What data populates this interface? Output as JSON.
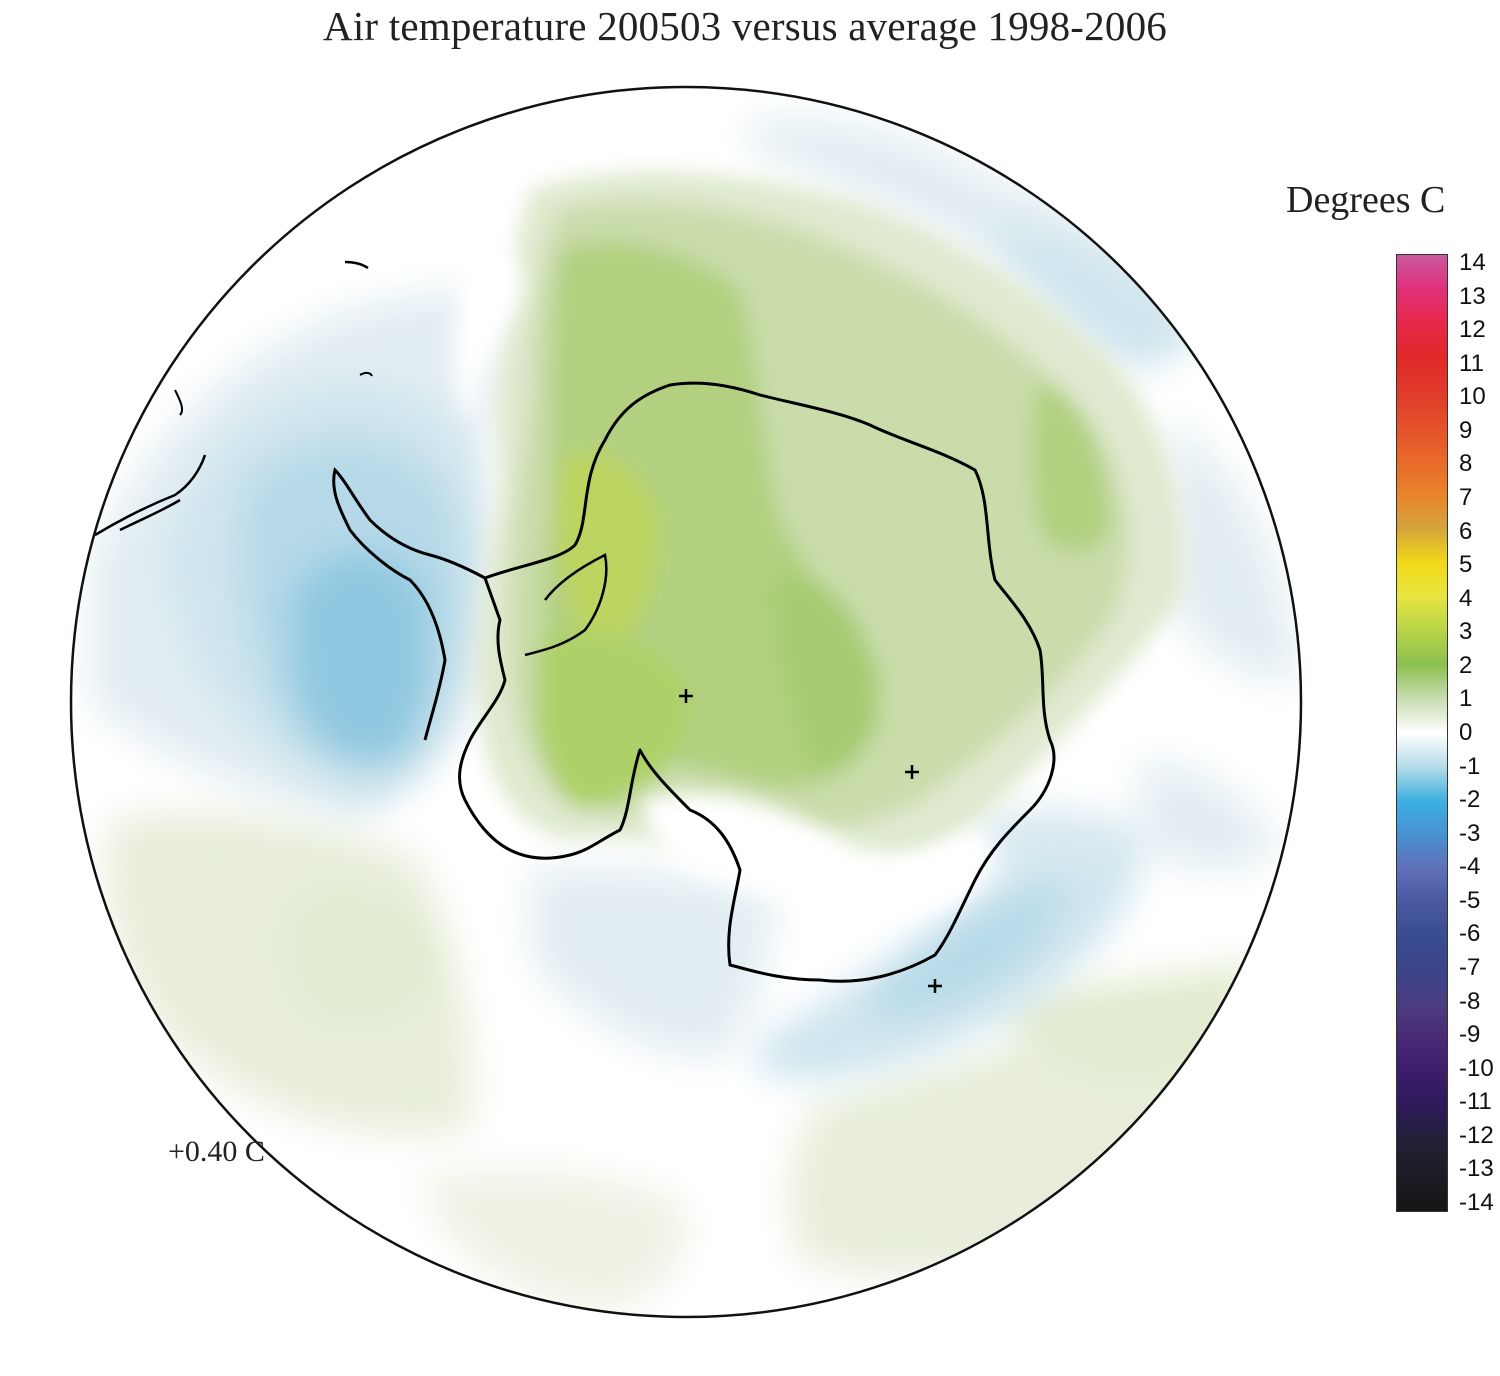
{
  "map": {
    "title": "Air temperature 200503 versus average 1998-2006",
    "global_mean_label": "+0.40 C"
  },
  "legend": {
    "title": "Degrees C",
    "min": -14,
    "max": 14,
    "ticks": [
      "14",
      "13",
      "12",
      "11",
      "10",
      "9",
      "8",
      "7",
      "6",
      "5",
      "4",
      "3",
      "2",
      "1",
      "0",
      "-1",
      "-2",
      "-3",
      "-4",
      "-5",
      "-6",
      "-7",
      "-8",
      "-9",
      "-10",
      "-11",
      "-12",
      "-13",
      "-14"
    ],
    "colors": {
      "14": "#c85aa0",
      "13": "#e0307a",
      "12": "#e8284a",
      "11": "#e02828",
      "10": "#e03a2a",
      "9": "#e4502a",
      "8": "#e8682a",
      "7": "#e8842a",
      "6": "#d4a43c",
      "5": "#f0d818",
      "4": "#e8e440",
      "3": "#b8d448",
      "2": "#8cc050",
      "1": "#c8dcb0",
      "0": "#ffffff",
      "-1": "#b4dce8",
      "-2": "#3cb0e0",
      "-3": "#4890d0",
      "-4": "#6070b8",
      "-5": "#4858a0",
      "-6": "#384c90",
      "-7": "#3c4488",
      "-8": "#4c3c80",
      "-9": "#482874",
      "-10": "#3a1c68",
      "-11": "#2c1a58",
      "-12": "#222034",
      "-13": "#1c1c24",
      "-14": "#151515"
    }
  }
}
